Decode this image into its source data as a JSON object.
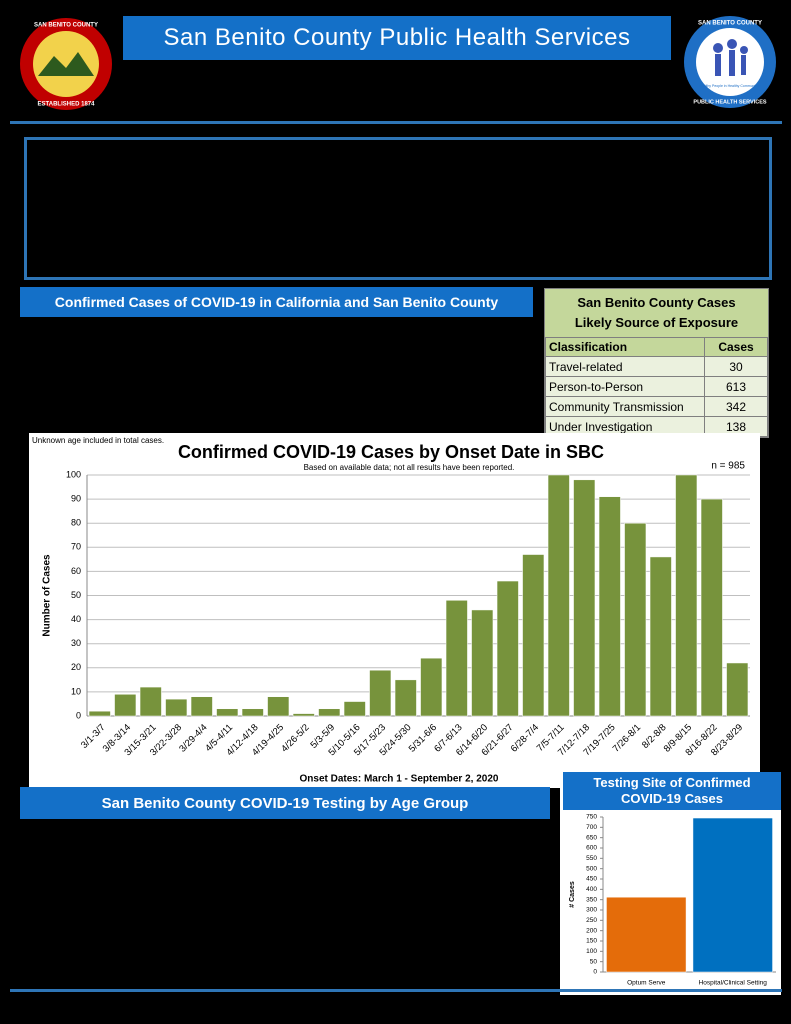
{
  "header": {
    "title": "San Benito County Public Health Services",
    "left_logo": {
      "top": "SAN BENITO COUNTY",
      "bottom": "ESTABLISHED 1874"
    },
    "right_logo": {
      "top": "SAN BENITO COUNTY",
      "middle": "Healthy People in Healthy Communities",
      "bottom": "PUBLIC HEALTH SERVICES"
    }
  },
  "sections": [
    "Confirmed Cases of COVID-19 in California and San Benito County",
    "San Benito County COVID-19 Testing by Age Group"
  ],
  "table": {
    "title_lines": [
      "San Benito County Cases",
      "Likely Source of Exposure"
    ],
    "columns": [
      "Classification",
      "Cases"
    ],
    "rows": [
      [
        "Travel-related",
        30
      ],
      [
        "Person-to-Person",
        613
      ],
      [
        "Community Transmission",
        342
      ],
      [
        "Under Investigation",
        138
      ]
    ]
  },
  "chart_data": [
    {
      "type": "bar",
      "title": "Confirmed COVID-19 Cases by Onset Date in SBC",
      "subtitle": "Based on available data; not all results have been reported.",
      "note": "Unknown age included in total cases.",
      "annotation": "n = 985",
      "ylabel": "Number of Cases",
      "xlabel": "Onset Dates: March 1 - September 2, 2020",
      "categories": [
        "3/1-3/7",
        "3/8-3/14",
        "3/15-3/21",
        "3/22-3/28",
        "3/29-4/4",
        "4/5-4/11",
        "4/12-4/18",
        "4/19-4/25",
        "4/26-5/2",
        "5/3-5/9",
        "5/10-5/16",
        "5/17-5/23",
        "5/24-5/30",
        "5/31-6/6",
        "6/7-6/13",
        "6/14-6/20",
        "6/21-6/27",
        "6/28-7/4",
        "7/5-7/11",
        "7/12-7/18",
        "7/19-7/25",
        "7/26-8/1",
        "8/2-8/8",
        "8/9-8/15",
        "8/16-8/22",
        "8/23-8/29"
      ],
      "values": [
        2,
        9,
        12,
        7,
        8,
        3,
        3,
        8,
        1,
        3,
        6,
        19,
        15,
        24,
        48,
        44,
        56,
        67,
        100,
        98,
        91,
        80,
        66,
        100,
        90,
        22
      ],
      "color": "#77933c",
      "ylim": [
        0,
        100
      ],
      "yticks": [
        0,
        10,
        20,
        30,
        40,
        50,
        60,
        70,
        80,
        90,
        100
      ],
      "grid": true
    },
    {
      "type": "bar",
      "title": "Testing Site of Confirmed COVID-19 Cases",
      "ylabel": "# Cases",
      "categories": [
        "Optum Serve",
        "Hospital/Clinical Setting"
      ],
      "values": [
        362,
        745
      ],
      "colors": [
        "#e46c0a",
        "#0070c0"
      ],
      "ylim": [
        0,
        750
      ],
      "yticks": [
        0,
        50,
        100,
        150,
        200,
        250,
        300,
        350,
        400,
        450,
        500,
        550,
        600,
        650,
        700,
        750
      ],
      "grid": false
    }
  ]
}
